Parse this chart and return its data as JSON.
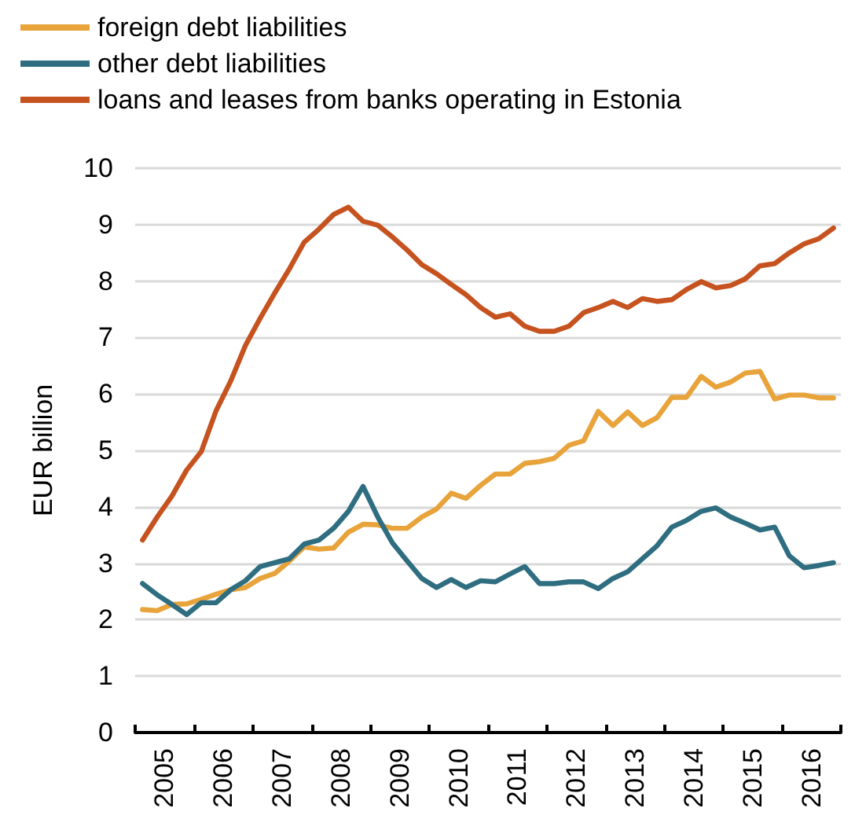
{
  "chart_data": {
    "type": "line",
    "ylabel": "EUR billion",
    "x": [
      2005.125,
      2005.375,
      2005.625,
      2005.875,
      2006.125,
      2006.375,
      2006.625,
      2006.875,
      2007.125,
      2007.375,
      2007.625,
      2007.875,
      2008.125,
      2008.375,
      2008.625,
      2008.875,
      2009.125,
      2009.375,
      2009.625,
      2009.875,
      2010.125,
      2010.375,
      2010.625,
      2010.875,
      2011.125,
      2011.375,
      2011.625,
      2011.875,
      2012.125,
      2012.375,
      2012.625,
      2012.875,
      2013.125,
      2013.375,
      2013.625,
      2013.875,
      2014.125,
      2014.375,
      2014.625,
      2014.875,
      2015.125,
      2015.375,
      2015.625,
      2015.875,
      2016.125,
      2016.375,
      2016.625,
      2016.875
    ],
    "series": [
      {
        "name": "foreign debt liabilities",
        "color": "#e8a33a",
        "values": [
          2.18,
          2.16,
          2.27,
          2.28,
          2.36,
          2.45,
          2.53,
          2.57,
          2.73,
          2.82,
          3.04,
          3.29,
          3.25,
          3.27,
          3.55,
          3.69,
          3.68,
          3.62,
          3.62,
          3.82,
          3.96,
          4.24,
          4.15,
          4.38,
          4.58,
          4.58,
          4.77,
          4.8,
          4.86,
          5.09,
          5.17,
          5.69,
          5.44,
          5.68,
          5.44,
          5.58,
          5.94,
          5.94,
          6.31,
          6.12,
          6.21,
          6.37,
          6.4,
          5.91,
          5.98,
          5.98,
          5.93,
          5.93
        ]
      },
      {
        "name": "other debt liabilities",
        "color": "#2e6e80",
        "values": [
          2.64,
          2.44,
          2.27,
          2.09,
          2.3,
          2.3,
          2.53,
          2.69,
          2.94,
          3.01,
          3.08,
          3.34,
          3.41,
          3.62,
          3.92,
          4.36,
          3.82,
          3.36,
          3.04,
          2.73,
          2.57,
          2.71,
          2.57,
          2.69,
          2.67,
          2.81,
          2.94,
          2.64,
          2.64,
          2.67,
          2.67,
          2.55,
          2.73,
          2.85,
          3.08,
          3.31,
          3.64,
          3.76,
          3.92,
          3.98,
          3.82,
          3.71,
          3.59,
          3.64,
          3.13,
          2.92,
          2.96,
          3.01
        ]
      },
      {
        "name": "loans and leases from banks operating in Estonia",
        "color": "#c6531f",
        "values": [
          3.41,
          3.82,
          4.19,
          4.65,
          4.98,
          5.7,
          6.23,
          6.86,
          7.34,
          7.79,
          8.22,
          8.69,
          8.92,
          9.18,
          9.31,
          9.06,
          8.99,
          8.78,
          8.55,
          8.29,
          8.13,
          7.94,
          7.76,
          7.53,
          7.36,
          7.42,
          7.2,
          7.11,
          7.11,
          7.2,
          7.44,
          7.53,
          7.64,
          7.53,
          7.69,
          7.64,
          7.67,
          7.85,
          7.99,
          7.88,
          7.92,
          8.04,
          8.27,
          8.31,
          8.5,
          8.66,
          8.75,
          8.94
        ]
      }
    ],
    "xlim": [
      2005,
      2017
    ],
    "xticks": [
      {
        "value": 2005,
        "label": null
      },
      {
        "value": 2005.5,
        "label": "2005"
      },
      {
        "value": 2006,
        "label": null
      },
      {
        "value": 2006.5,
        "label": "2006"
      },
      {
        "value": 2007,
        "label": null
      },
      {
        "value": 2007.5,
        "label": "2007"
      },
      {
        "value": 2008,
        "label": null
      },
      {
        "value": 2008.5,
        "label": "2008"
      },
      {
        "value": 2009,
        "label": null
      },
      {
        "value": 2009.5,
        "label": "2009"
      },
      {
        "value": 2010,
        "label": null
      },
      {
        "value": 2010.5,
        "label": "2010"
      },
      {
        "value": 2011,
        "label": null
      },
      {
        "value": 2011.5,
        "label": "2011"
      },
      {
        "value": 2012,
        "label": null
      },
      {
        "value": 2012.5,
        "label": "2012"
      },
      {
        "value": 2013,
        "label": null
      },
      {
        "value": 2013.5,
        "label": "2013"
      },
      {
        "value": 2014,
        "label": null
      },
      {
        "value": 2014.5,
        "label": "2014"
      },
      {
        "value": 2015,
        "label": null
      },
      {
        "value": 2015.5,
        "label": "2015"
      },
      {
        "value": 2016,
        "label": null
      },
      {
        "value": 2016.5,
        "label": "2016"
      },
      {
        "value": 2017,
        "label": null
      }
    ],
    "ylim": [
      0,
      10
    ],
    "yticks": [
      0,
      1,
      2,
      3,
      4,
      5,
      6,
      7,
      8,
      9,
      10
    ],
    "grid": "y",
    "legend": "top left",
    "marker": "none",
    "line_style": "solid"
  }
}
